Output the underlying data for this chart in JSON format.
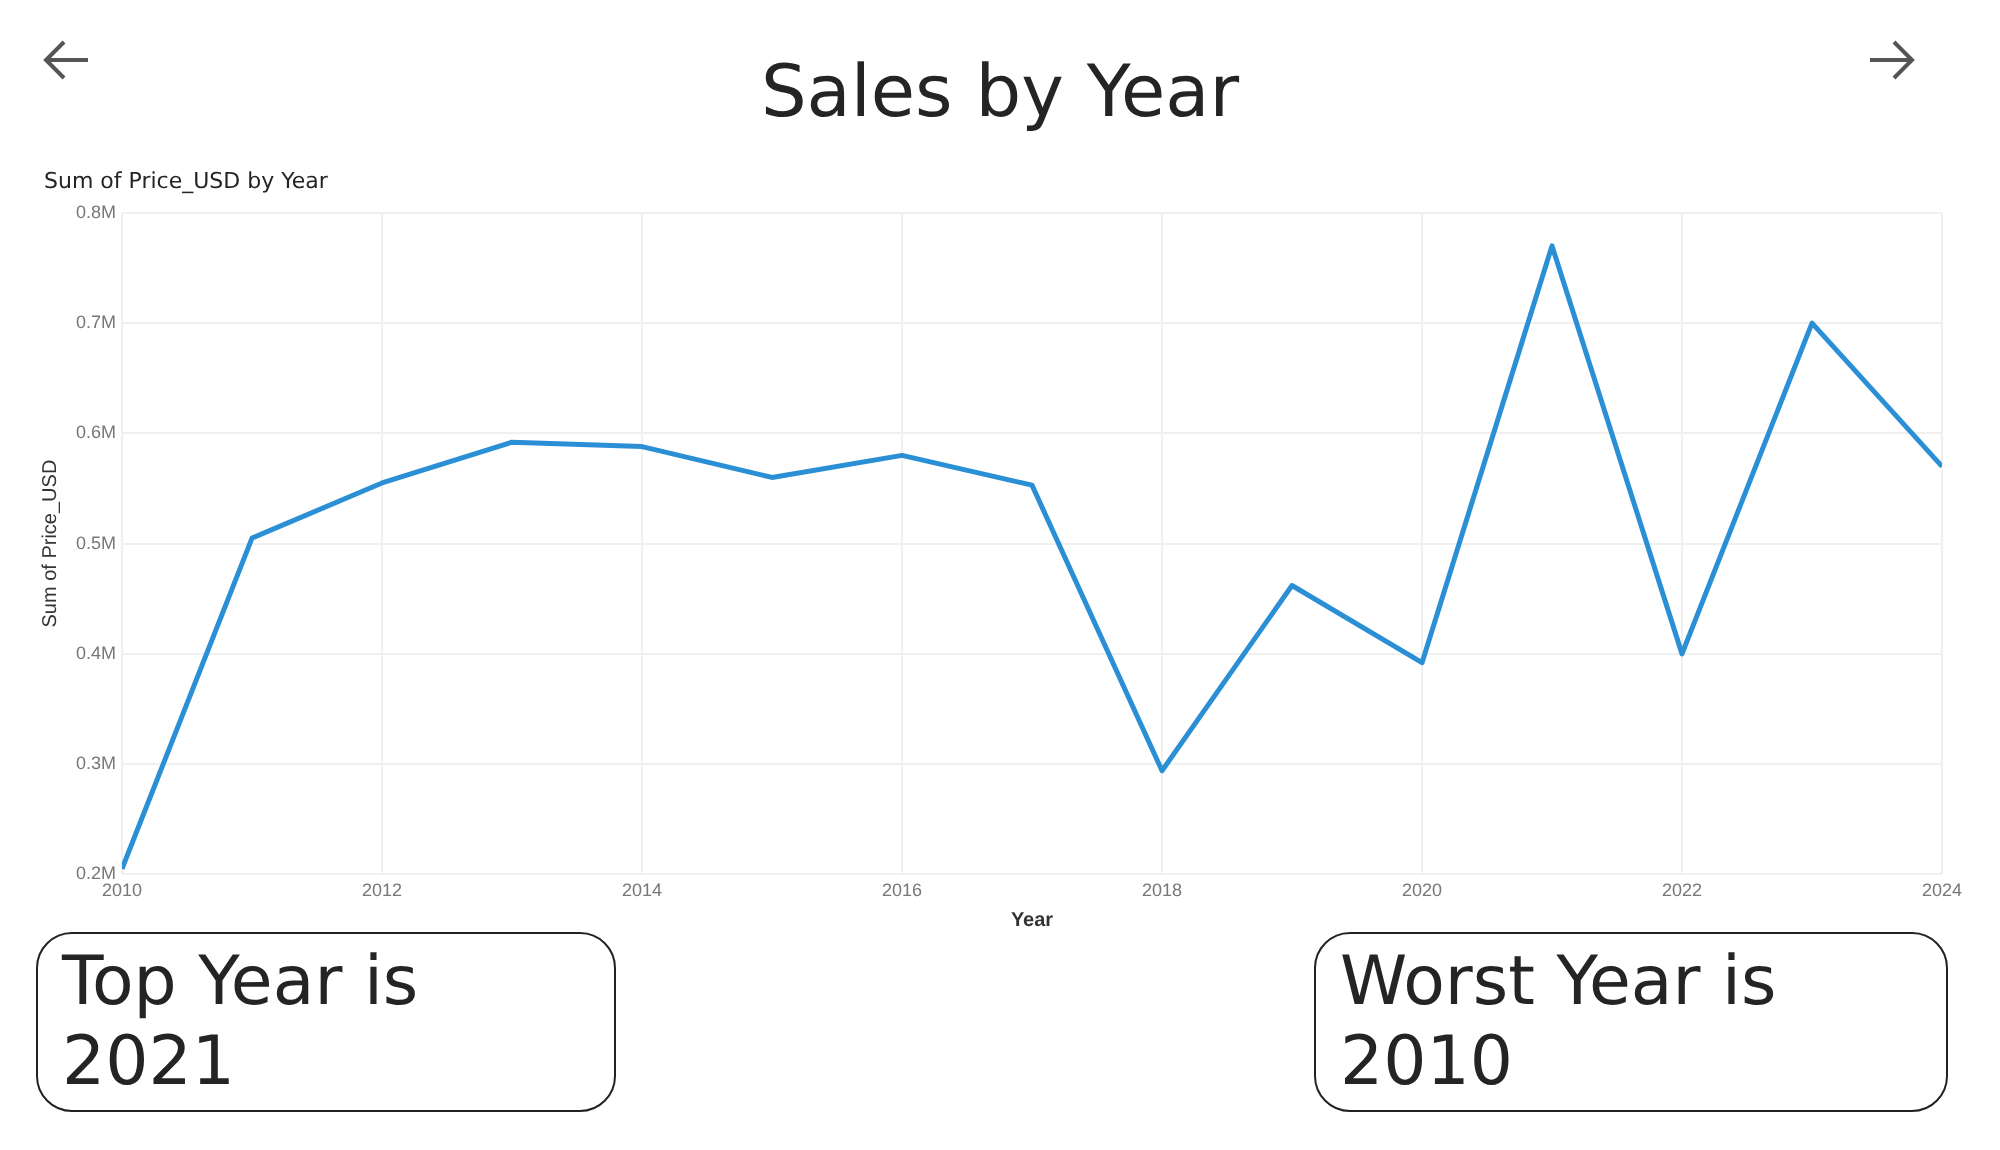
{
  "chart_data": {
    "type": "line",
    "title": "Sales by Year",
    "subtitle": "Sum of Price_USD by Year",
    "xlabel": "Year",
    "ylabel": "Sum of Price_USD",
    "x": [
      2010,
      2011,
      2012,
      2013,
      2014,
      2015,
      2016,
      2017,
      2018,
      2019,
      2020,
      2021,
      2022,
      2023,
      2024
    ],
    "series": [
      {
        "color": "#2b8fd6",
        "values": [
          0.205,
          0.505,
          0.555,
          0.592,
          0.588,
          0.56,
          0.58,
          0.553,
          0.294,
          0.462,
          0.392,
          0.77,
          0.4,
          0.7,
          0.57
        ]
      }
    ],
    "xlim": [
      2010,
      2024
    ],
    "xticks": [
      2010,
      2012,
      2014,
      2016,
      2018,
      2020,
      2022,
      2024
    ],
    "ylim": [
      0.2,
      0.8
    ],
    "yticks": [
      {
        "value": 0.2,
        "label": "0.2M"
      },
      {
        "value": 0.3,
        "label": "0.3M"
      },
      {
        "value": 0.4,
        "label": "0.4M"
      },
      {
        "value": 0.5,
        "label": "0.5M"
      },
      {
        "value": 0.6,
        "label": "0.6M"
      },
      {
        "value": 0.7,
        "label": "0.7M"
      },
      {
        "value": 0.8,
        "label": "0.8M"
      }
    ],
    "grid": true,
    "legend": false,
    "marker": "none",
    "line_style": "solid",
    "annotations": [
      "Top Year is 2021",
      "Worst Year is 2010"
    ]
  }
}
